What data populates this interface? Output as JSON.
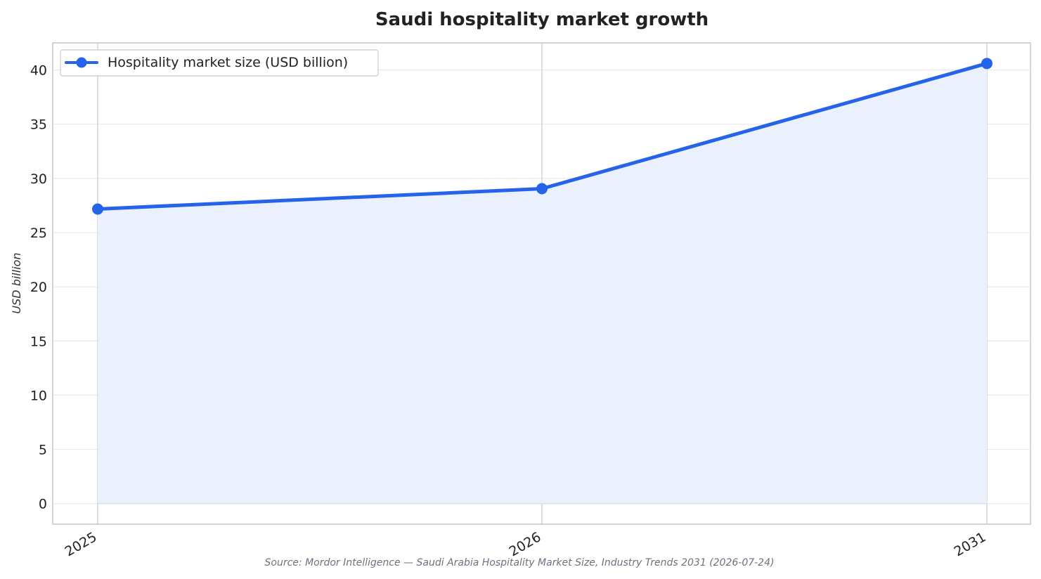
{
  "chart_data": {
    "type": "area",
    "title": "Saudi hospitality market growth",
    "xlabel": "",
    "ylabel": "USD billion",
    "categories": [
      "2025",
      "2026",
      "2031"
    ],
    "x": [
      2025,
      2026,
      2031
    ],
    "series": [
      {
        "name": "Hospitality market size (USD billion)",
        "values": [
          27.17,
          29.05,
          40.6
        ],
        "color": "#2563eb"
      }
    ],
    "ylim": [
      -1.9,
      42.5
    ],
    "y_ticks": [
      0,
      5,
      10,
      15,
      20,
      25,
      30,
      35,
      40
    ],
    "y_tick_labels": [
      "0",
      "5",
      "10",
      "15",
      "20",
      "25",
      "30",
      "35",
      "40"
    ],
    "grid": true,
    "legend_position": "top-left",
    "fill_color": "#eaf0fc",
    "source": "Source: Mordor Intelligence — Saudi Arabia Hospitality Market Size, Industry Trends 2031 (2026-07-24)"
  }
}
